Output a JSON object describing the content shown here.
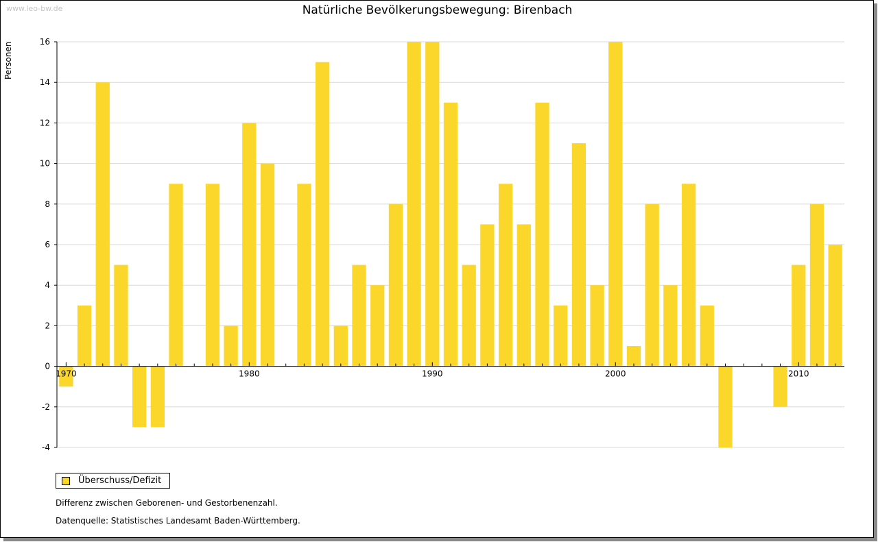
{
  "watermark": "www.leo-bw.de",
  "legend_label": "Überschuss/Defizit",
  "notes": {
    "line1": "Differenz zwischen Geborenen- und Gestorbenenzahl.",
    "line2": "Datenquelle: Statistisches Landesamt Baden-Württemberg."
  },
  "colors": {
    "bar": "#fcd72b",
    "grid": "#d8d8d8",
    "axis": "#000000"
  },
  "chart_data": {
    "type": "bar",
    "title": "Natürliche Bevölkerungsbewegung: Birenbach",
    "ylabel": "Personen",
    "xlabel": "",
    "ylim": [
      -4,
      16
    ],
    "yticks": [
      -4,
      -2,
      0,
      2,
      4,
      6,
      8,
      10,
      12,
      14,
      16
    ],
    "xtick_labels": [
      "1970",
      "1980",
      "1990",
      "2000",
      "2010"
    ],
    "grid": true,
    "legend_position": "bottom-left",
    "categories": [
      1970,
      1971,
      1972,
      1973,
      1974,
      1975,
      1976,
      1977,
      1978,
      1979,
      1980,
      1981,
      1982,
      1983,
      1984,
      1985,
      1986,
      1987,
      1988,
      1989,
      1990,
      1991,
      1992,
      1993,
      1994,
      1995,
      1996,
      1997,
      1998,
      1999,
      2000,
      2001,
      2002,
      2003,
      2004,
      2005,
      2006,
      2007,
      2008,
      2009,
      2010,
      2011,
      2012
    ],
    "series": [
      {
        "name": "Überschuss/Defizit",
        "values": [
          -1,
          3,
          14,
          5,
          -3,
          -3,
          9,
          0,
          9,
          2,
          12,
          10,
          0,
          9,
          15,
          2,
          5,
          4,
          8,
          16,
          16,
          13,
          5,
          7,
          9,
          7,
          13,
          3,
          11,
          4,
          16,
          1,
          8,
          4,
          9,
          3,
          -4,
          0,
          0,
          -2,
          5,
          8,
          6
        ]
      }
    ]
  }
}
